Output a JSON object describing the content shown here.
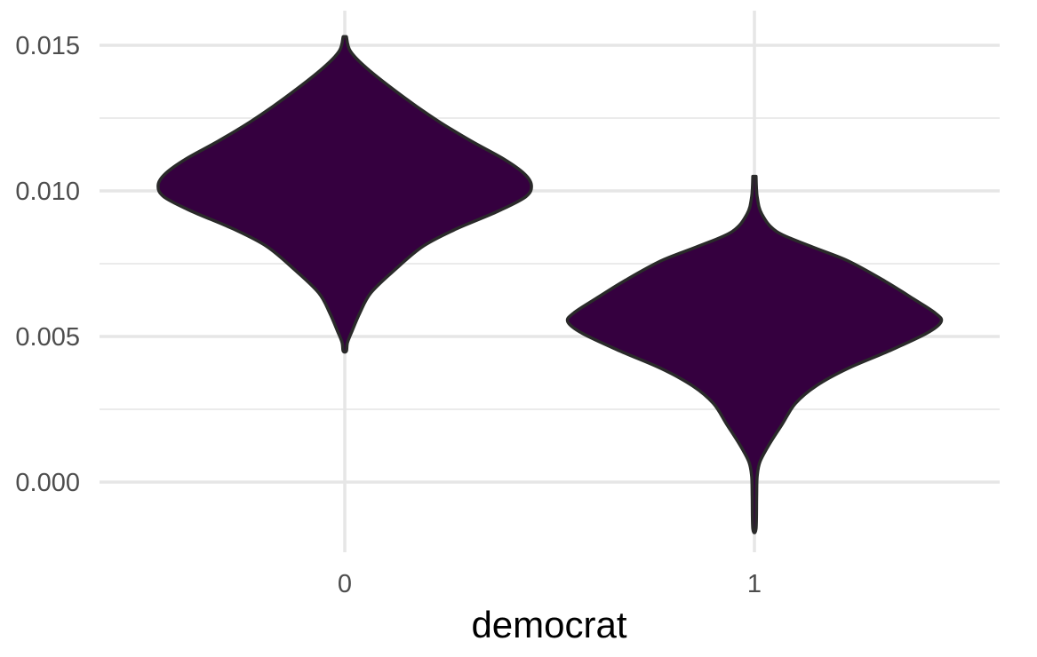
{
  "chart_data": {
    "type": "violin",
    "title": "",
    "xlabel": "democrat",
    "ylabel": "",
    "categories": [
      "0",
      "1"
    ],
    "ylim": [
      -0.0023,
      0.0162
    ],
    "yticks": [
      0.0,
      0.005,
      0.01,
      0.015
    ],
    "ytick_labels": [
      "0.000",
      "0.005",
      "0.010",
      "0.015"
    ],
    "grid": true,
    "legend": "none",
    "fill_color": "#35003f",
    "outline_color": "#2a2a2a",
    "violins": [
      {
        "category": "0",
        "min": 0.0045,
        "max": 0.0153,
        "profile": [
          [
            0.0153,
            0.0
          ],
          [
            0.0148,
            0.03
          ],
          [
            0.0142,
            0.12
          ],
          [
            0.0132,
            0.32
          ],
          [
            0.0124,
            0.5
          ],
          [
            0.0117,
            0.68
          ],
          [
            0.0111,
            0.85
          ],
          [
            0.0106,
            0.96
          ],
          [
            0.0102,
            1.0
          ],
          [
            0.0098,
            0.97
          ],
          [
            0.0093,
            0.82
          ],
          [
            0.0087,
            0.6
          ],
          [
            0.0081,
            0.42
          ],
          [
            0.0073,
            0.27
          ],
          [
            0.0065,
            0.14
          ],
          [
            0.0058,
            0.08
          ],
          [
            0.0052,
            0.04
          ],
          [
            0.0048,
            0.015
          ],
          [
            0.0045,
            0.0
          ]
        ]
      },
      {
        "category": "1",
        "min": -0.0016,
        "max": 0.0105,
        "profile": [
          [
            0.0105,
            0.0
          ],
          [
            0.0098,
            0.015
          ],
          [
            0.0092,
            0.04
          ],
          [
            0.0086,
            0.12
          ],
          [
            0.0081,
            0.3
          ],
          [
            0.0076,
            0.5
          ],
          [
            0.0069,
            0.7
          ],
          [
            0.0063,
            0.85
          ],
          [
            0.0058,
            0.97
          ],
          [
            0.0055,
            1.0
          ],
          [
            0.0051,
            0.92
          ],
          [
            0.0045,
            0.72
          ],
          [
            0.0039,
            0.5
          ],
          [
            0.0033,
            0.33
          ],
          [
            0.0027,
            0.22
          ],
          [
            0.002,
            0.15
          ],
          [
            0.0013,
            0.08
          ],
          [
            0.0007,
            0.03
          ],
          [
            0.0002,
            0.015
          ],
          [
            -0.0005,
            0.012
          ],
          [
            -0.0016,
            0.0
          ]
        ]
      }
    ]
  }
}
